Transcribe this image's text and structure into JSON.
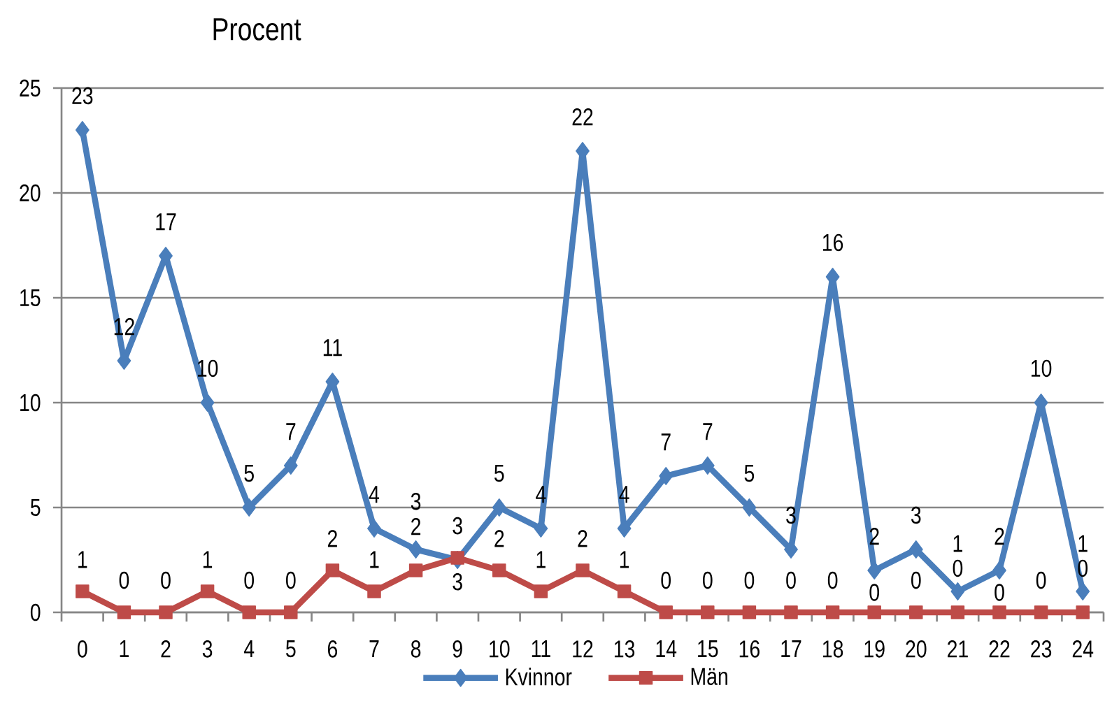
{
  "chart_data": {
    "type": "line",
    "ylabel": "Procent",
    "categories": [
      "0",
      "1",
      "2",
      "3",
      "4",
      "5",
      "6",
      "7",
      "8",
      "9",
      "10",
      "11",
      "12",
      "13",
      "14",
      "15",
      "16",
      "17",
      "18",
      "19",
      "20",
      "21",
      "22",
      "23",
      "24"
    ],
    "series": [
      {
        "name": "Kvinnor",
        "color": "#4a7ebb",
        "marker": "diamond",
        "values": [
          23,
          12,
          17,
          10,
          5,
          7,
          11,
          4,
          3,
          2.5,
          5,
          4,
          22,
          4,
          6.5,
          7,
          5,
          3,
          16,
          2,
          3,
          1,
          2,
          10,
          1
        ],
        "value_labels": [
          "23",
          "12",
          "17",
          "10",
          "5",
          "7",
          "11",
          "4",
          "3",
          "3",
          "5",
          "4",
          "22",
          "4",
          "7",
          "7",
          "5",
          "3",
          "16",
          "2",
          "3",
          "1",
          "2",
          "10",
          "1"
        ]
      },
      {
        "name": "Män",
        "color": "#be4b48",
        "marker": "square",
        "values": [
          1,
          0,
          0,
          1,
          0,
          0,
          2,
          1,
          2,
          2.6,
          2,
          1,
          2,
          1,
          0,
          0,
          0,
          0,
          0,
          0,
          0,
          0,
          0,
          0,
          0
        ],
        "value_labels": [
          "1",
          "0",
          "0",
          "1",
          "0",
          "0",
          "2",
          "1",
          "2",
          "3",
          "2",
          "1",
          "2",
          "1",
          "0",
          "0",
          "0",
          "0",
          "0",
          "0",
          "0",
          "0",
          "0",
          "0",
          "0"
        ]
      }
    ],
    "ylim": [
      0,
      25
    ],
    "yticks": [
      0,
      5,
      10,
      15,
      20,
      25
    ],
    "grid": "y",
    "legend": "bottom",
    "line_style": "solid"
  }
}
